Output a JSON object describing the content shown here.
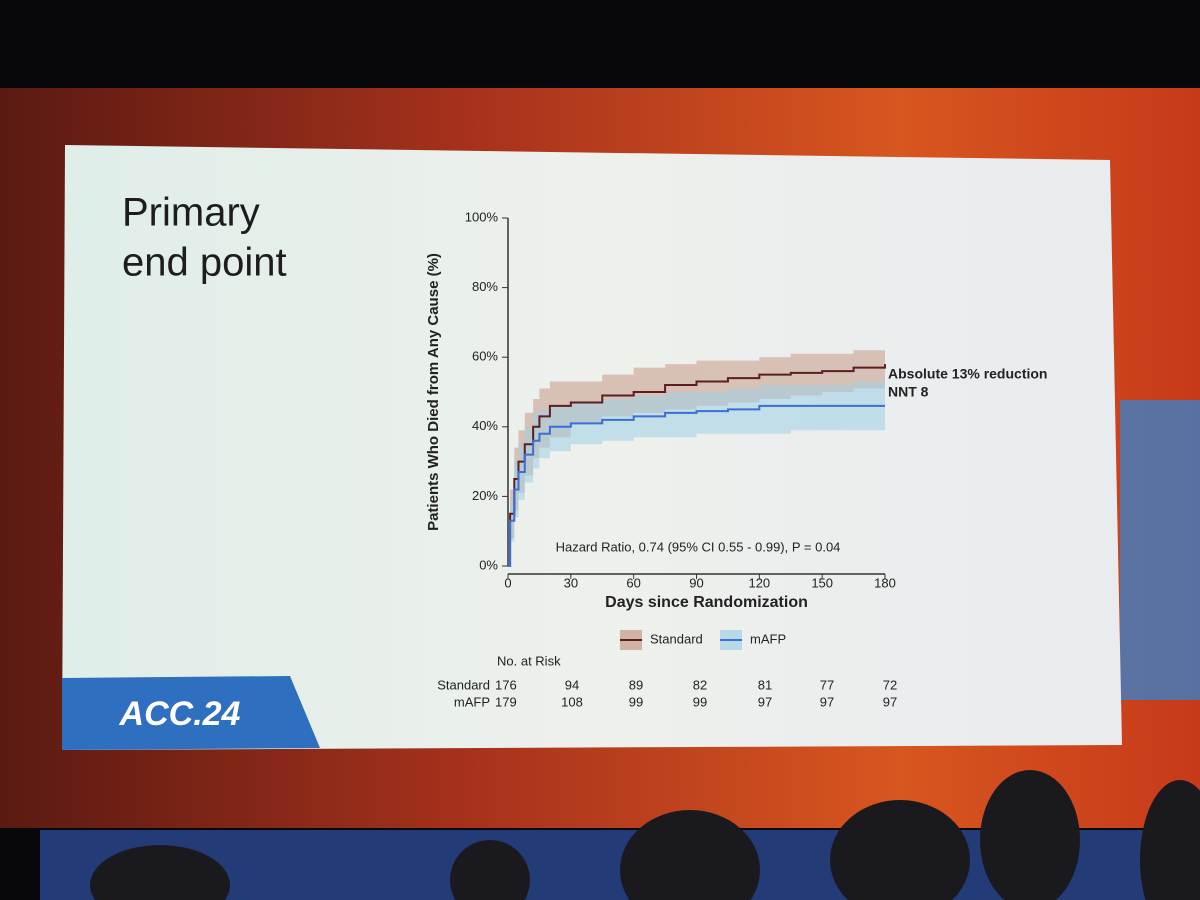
{
  "slide": {
    "title_line1": "Primary",
    "title_line2": "end point",
    "logo": "ACC.24"
  },
  "chart_data": {
    "type": "line",
    "step": true,
    "ylabel": "Patients Who Died from Any Cause (%)",
    "xlabel": "Days since Randomization",
    "x": [
      0,
      1,
      3,
      5,
      8,
      12,
      15,
      20,
      30,
      45,
      60,
      75,
      90,
      105,
      120,
      135,
      150,
      165,
      180
    ],
    "series": [
      {
        "name": "Standard",
        "color": "#5b1e22",
        "band_color": "#c79a86",
        "values": [
          0,
          15,
          25,
          30,
          35,
          40,
          43,
          46,
          47,
          49,
          50,
          52,
          53,
          54,
          55,
          55.5,
          56,
          57,
          58
        ],
        "ci_lower": [
          0,
          8,
          16,
          21,
          26,
          31,
          34,
          37,
          41,
          43,
          44,
          45,
          46,
          47,
          48,
          49,
          50,
          51,
          52
        ],
        "ci_upper": [
          0,
          22,
          34,
          39,
          44,
          48,
          51,
          53,
          53,
          55,
          57,
          58,
          59,
          59,
          60,
          61,
          61,
          62,
          63
        ]
      },
      {
        "name": "mAFP",
        "color": "#3b6fd6",
        "band_color": "#9fd0e6",
        "values": [
          0,
          13,
          22,
          27,
          32,
          36,
          38,
          40,
          41,
          42,
          43,
          44,
          44.5,
          45,
          46,
          46,
          46,
          46,
          46
        ],
        "ci_lower": [
          0,
          7,
          14,
          19,
          24,
          28,
          31,
          33,
          35,
          36,
          37,
          37,
          38,
          38,
          38,
          39,
          39,
          39,
          39
        ],
        "ci_upper": [
          0,
          19,
          30,
          35,
          40,
          44,
          45,
          46,
          47,
          48,
          49,
          50,
          50,
          51,
          52,
          52,
          52,
          53,
          53
        ]
      }
    ],
    "xlim": [
      0,
      180
    ],
    "xticks": [
      0,
      30,
      60,
      90,
      120,
      150,
      180
    ],
    "ylim": [
      0,
      100
    ],
    "yticks": [
      {
        "value": 0,
        "label": "0%"
      },
      {
        "value": 20,
        "label": "20%"
      },
      {
        "value": 40,
        "label": "40%"
      },
      {
        "value": 60,
        "label": "60%"
      },
      {
        "value": 80,
        "label": "80%"
      },
      {
        "value": 100,
        "label": "100%"
      }
    ],
    "annotations": [
      "Absolute 13% reduction",
      "NNT 8",
      "Hazard Ratio, 0.74 (95% CI 0.55 - 0.99), P = 0.04"
    ],
    "risk_table": {
      "title": "No. at Risk",
      "rows": [
        {
          "name": "Standard",
          "values": [
            176,
            94,
            89,
            82,
            81,
            77,
            72
          ]
        },
        {
          "name": "mAFP",
          "values": [
            179,
            108,
            99,
            99,
            97,
            97,
            97
          ]
        }
      ]
    }
  }
}
